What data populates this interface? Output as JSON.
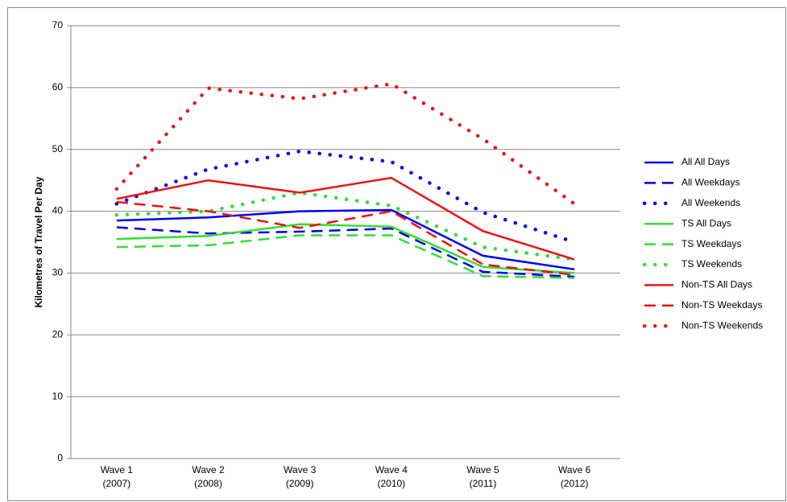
{
  "chart_data": {
    "type": "line",
    "y_label": "Kilometres of Travel Per Day",
    "categories": [
      "Wave 1\n(2007)",
      "Wave 2\n(2008)",
      "Wave 3\n(2009)",
      "Wave 4\n(2010)",
      "Wave 5\n(2011)",
      "Wave 6\n(2012)"
    ],
    "ylim": [
      0,
      70
    ],
    "yticks": [
      0,
      10,
      20,
      30,
      40,
      50,
      60,
      70
    ],
    "grid": true,
    "legend": "right",
    "series": [
      {
        "name": "All All Days",
        "color": "#0000ee",
        "style": "solid",
        "values": [
          38.5,
          39,
          40,
          40.2,
          32.8,
          30.6
        ]
      },
      {
        "name": "All Weekdays",
        "color": "#0000ee",
        "style": "dashed",
        "values": [
          37.4,
          36.4,
          36.7,
          37.2,
          30.2,
          29.4
        ]
      },
      {
        "name": "All Weekends",
        "color": "#0000ee",
        "style": "dotted",
        "values": [
          41.2,
          46.8,
          49.7,
          48,
          39.8,
          35
        ]
      },
      {
        "name": "TS All Days",
        "color": "#33dd33",
        "style": "solid",
        "values": [
          35.5,
          36,
          37.9,
          37.5,
          31,
          30
        ]
      },
      {
        "name": "TS Weekdays",
        "color": "#33dd33",
        "style": "dashed",
        "values": [
          34.2,
          34.5,
          36.1,
          36.1,
          29.5,
          29.2
        ]
      },
      {
        "name": "TS Weekends",
        "color": "#33dd33",
        "style": "dotted",
        "values": [
          39.4,
          40,
          43,
          40.9,
          34.2,
          32.2
        ]
      },
      {
        "name": "Non-TS All Days",
        "color": "#ee1111",
        "style": "solid",
        "values": [
          42,
          45,
          43,
          45.4,
          36.8,
          32.2
        ]
      },
      {
        "name": "Non-TS Weekdays",
        "color": "#ee1111",
        "style": "dashed",
        "values": [
          41.5,
          40,
          37.3,
          40,
          31.4,
          29.7
        ]
      },
      {
        "name": "Non-TS Weekends",
        "color": "#ee1111",
        "style": "dotted",
        "values": [
          43.6,
          59.9,
          58.2,
          60.6,
          51.7,
          41.2
        ]
      }
    ]
  }
}
